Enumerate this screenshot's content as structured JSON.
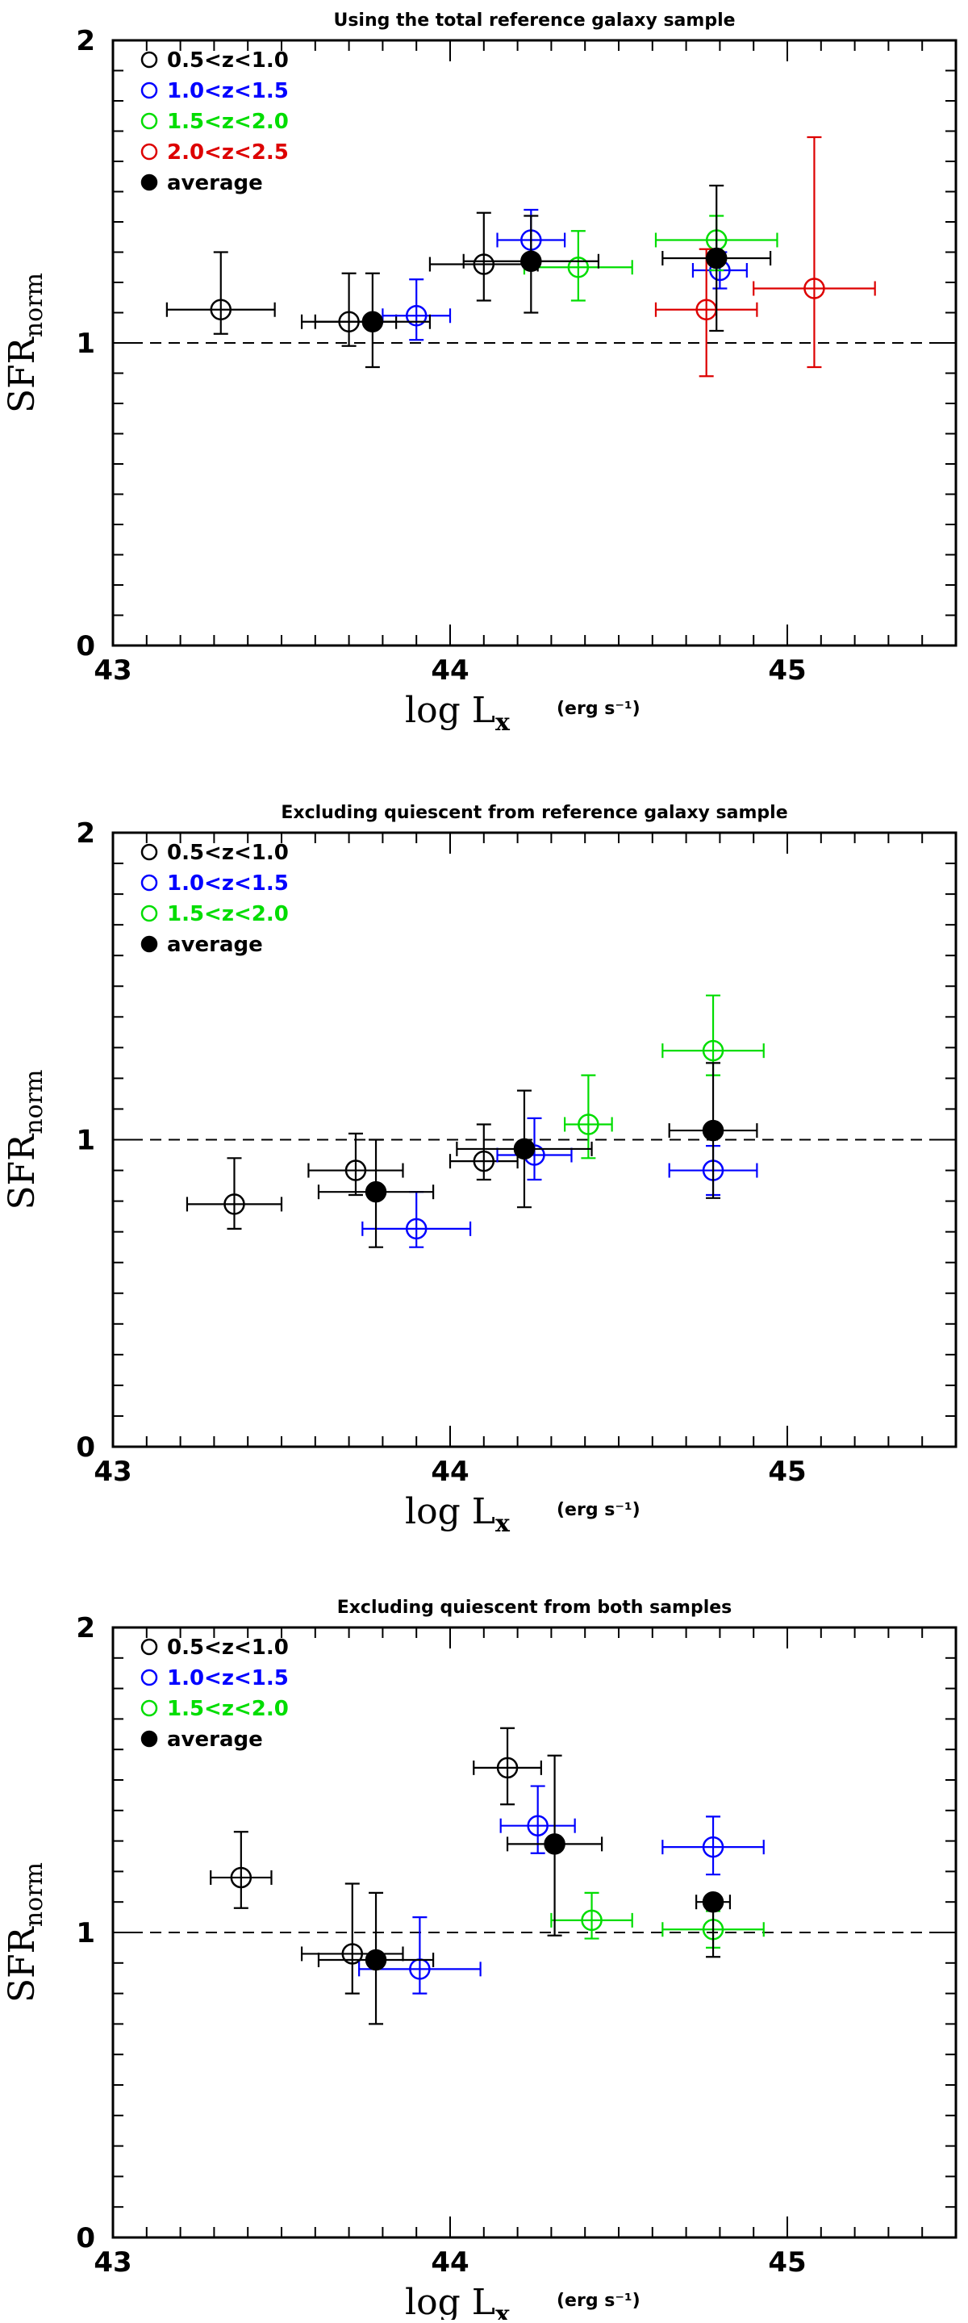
{
  "chart_data": [
    {
      "type": "scatter",
      "title": "Using the total reference galaxy sample",
      "xlabel": "log L",
      "xlabel_sub": "x",
      "xunit": "(erg s⁻¹)",
      "ylabel": "SFR",
      "ylabel_sub": "norm",
      "xlim": [
        43,
        45.5
      ],
      "ylim": [
        0,
        2
      ],
      "x_ticks": [
        "43",
        "44",
        "45"
      ],
      "y_ticks": [
        "0",
        "1",
        "2"
      ],
      "reference_line": 1,
      "series": [
        {
          "name": "0.5<z<1.0",
          "color": "#000000",
          "marker": "open-circle",
          "points": [
            {
              "x": 43.32,
              "y": 1.11,
              "xlo": 0.16,
              "xhi": 0.16,
              "ylo": 0.08,
              "yhi": 0.19
            },
            {
              "x": 43.7,
              "y": 1.07,
              "xlo": 0.14,
              "xhi": 0.14,
              "ylo": 0.08,
              "yhi": 0.16
            },
            {
              "x": 44.1,
              "y": 1.26,
              "xlo": 0.16,
              "xhi": 0.16,
              "ylo": 0.12,
              "yhi": 0.17
            }
          ]
        },
        {
          "name": "1.0<z<1.5",
          "color": "#0000ff",
          "marker": "open-circle",
          "points": [
            {
              "x": 43.9,
              "y": 1.09,
              "xlo": 0.1,
              "xhi": 0.1,
              "ylo": 0.08,
              "yhi": 0.12
            },
            {
              "x": 44.24,
              "y": 1.34,
              "xlo": 0.1,
              "xhi": 0.1,
              "ylo": 0.09,
              "yhi": 0.1
            },
            {
              "x": 44.8,
              "y": 1.24,
              "xlo": 0.08,
              "xhi": 0.08,
              "ylo": 0.06,
              "yhi": 0.06
            }
          ]
        },
        {
          "name": "1.5<z<2.0",
          "color": "#00dd00",
          "marker": "open-circle",
          "points": [
            {
              "x": 44.38,
              "y": 1.25,
              "xlo": 0.16,
              "xhi": 0.16,
              "ylo": 0.11,
              "yhi": 0.12
            },
            {
              "x": 44.79,
              "y": 1.34,
              "xlo": 0.18,
              "xhi": 0.18,
              "ylo": 0.1,
              "yhi": 0.08
            }
          ]
        },
        {
          "name": "2.0<z<2.5",
          "color": "#dd0000",
          "marker": "open-circle",
          "points": [
            {
              "x": 44.76,
              "y": 1.11,
              "xlo": 0.15,
              "xhi": 0.15,
              "ylo": 0.22,
              "yhi": 0.2
            },
            {
              "x": 45.08,
              "y": 1.18,
              "xlo": 0.18,
              "xhi": 0.18,
              "ylo": 0.26,
              "yhi": 0.5
            }
          ]
        },
        {
          "name": "average",
          "color": "#000000",
          "marker": "filled-circle",
          "points": [
            {
              "x": 43.77,
              "y": 1.07,
              "xlo": 0.17,
              "xhi": 0.17,
              "ylo": 0.15,
              "yhi": 0.16
            },
            {
              "x": 44.24,
              "y": 1.27,
              "xlo": 0.2,
              "xhi": 0.2,
              "ylo": 0.17,
              "yhi": 0.15
            },
            {
              "x": 44.79,
              "y": 1.28,
              "xlo": 0.16,
              "xhi": 0.16,
              "ylo": 0.24,
              "yhi": 0.24
            }
          ]
        }
      ]
    },
    {
      "type": "scatter",
      "title": "Excluding quiescent from reference galaxy sample",
      "xlabel": "log L",
      "xlabel_sub": "x",
      "xunit": "(erg s⁻¹)",
      "ylabel": "SFR",
      "ylabel_sub": "norm",
      "xlim": [
        43,
        45.5
      ],
      "ylim": [
        0,
        2
      ],
      "x_ticks": [
        "43",
        "44",
        "45"
      ],
      "y_ticks": [
        "0",
        "1",
        "2"
      ],
      "reference_line": 1,
      "series": [
        {
          "name": "0.5<z<1.0",
          "color": "#000000",
          "marker": "open-circle",
          "points": [
            {
              "x": 43.36,
              "y": 0.79,
              "xlo": 0.14,
              "xhi": 0.14,
              "ylo": 0.08,
              "yhi": 0.15
            },
            {
              "x": 43.72,
              "y": 0.9,
              "xlo": 0.14,
              "xhi": 0.14,
              "ylo": 0.08,
              "yhi": 0.12
            },
            {
              "x": 44.1,
              "y": 0.93,
              "xlo": 0.1,
              "xhi": 0.1,
              "ylo": 0.06,
              "yhi": 0.12
            }
          ]
        },
        {
          "name": "1.0<z<1.5",
          "color": "#0000ff",
          "marker": "open-circle",
          "points": [
            {
              "x": 43.9,
              "y": 0.71,
              "xlo": 0.16,
              "xhi": 0.16,
              "ylo": 0.06,
              "yhi": 0.12
            },
            {
              "x": 44.25,
              "y": 0.95,
              "xlo": 0.11,
              "xhi": 0.11,
              "ylo": 0.08,
              "yhi": 0.12
            },
            {
              "x": 44.78,
              "y": 0.9,
              "xlo": 0.13,
              "xhi": 0.13,
              "ylo": 0.08,
              "yhi": 0.08
            }
          ]
        },
        {
          "name": "1.5<z<2.0",
          "color": "#00dd00",
          "marker": "open-circle",
          "points": [
            {
              "x": 44.41,
              "y": 1.05,
              "xlo": 0.07,
              "xhi": 0.07,
              "ylo": 0.11,
              "yhi": 0.16
            },
            {
              "x": 44.78,
              "y": 1.29,
              "xlo": 0.15,
              "xhi": 0.15,
              "ylo": 0.08,
              "yhi": 0.18
            }
          ]
        },
        {
          "name": "average",
          "color": "#000000",
          "marker": "filled-circle",
          "points": [
            {
              "x": 43.78,
              "y": 0.83,
              "xlo": 0.17,
              "xhi": 0.17,
              "ylo": 0.18,
              "yhi": 0.17
            },
            {
              "x": 44.22,
              "y": 0.97,
              "xlo": 0.2,
              "xhi": 0.2,
              "ylo": 0.19,
              "yhi": 0.19
            },
            {
              "x": 44.78,
              "y": 1.03,
              "xlo": 0.13,
              "xhi": 0.13,
              "ylo": 0.22,
              "yhi": 0.22
            }
          ]
        }
      ]
    },
    {
      "type": "scatter",
      "title": "Excluding quiescent from both samples",
      "xlabel": "log L",
      "xlabel_sub": "x",
      "xunit": "(erg s⁻¹)",
      "ylabel": "SFR",
      "ylabel_sub": "norm",
      "xlim": [
        43,
        45.5
      ],
      "ylim": [
        0,
        2
      ],
      "x_ticks": [
        "43",
        "44",
        "45"
      ],
      "y_ticks": [
        "0",
        "1",
        "2"
      ],
      "reference_line": 1,
      "series": [
        {
          "name": "0.5<z<1.0",
          "color": "#000000",
          "marker": "open-circle",
          "points": [
            {
              "x": 43.38,
              "y": 1.18,
              "xlo": 0.09,
              "xhi": 0.09,
              "ylo": 0.1,
              "yhi": 0.15
            },
            {
              "x": 43.71,
              "y": 0.93,
              "xlo": 0.15,
              "xhi": 0.15,
              "ylo": 0.13,
              "yhi": 0.23
            },
            {
              "x": 44.17,
              "y": 1.54,
              "xlo": 0.1,
              "xhi": 0.1,
              "ylo": 0.12,
              "yhi": 0.13
            }
          ]
        },
        {
          "name": "1.0<z<1.5",
          "color": "#0000ff",
          "marker": "open-circle",
          "points": [
            {
              "x": 43.91,
              "y": 0.88,
              "xlo": 0.18,
              "xhi": 0.18,
              "ylo": 0.08,
              "yhi": 0.17
            },
            {
              "x": 44.26,
              "y": 1.35,
              "xlo": 0.11,
              "xhi": 0.11,
              "ylo": 0.09,
              "yhi": 0.13
            },
            {
              "x": 44.78,
              "y": 1.28,
              "xlo": 0.15,
              "xhi": 0.15,
              "ylo": 0.09,
              "yhi": 0.1
            }
          ]
        },
        {
          "name": "1.5<z<2.0",
          "color": "#00dd00",
          "marker": "open-circle",
          "points": [
            {
              "x": 44.42,
              "y": 1.04,
              "xlo": 0.12,
              "xhi": 0.12,
              "ylo": 0.06,
              "yhi": 0.09
            },
            {
              "x": 44.78,
              "y": 1.01,
              "xlo": 0.15,
              "xhi": 0.15,
              "ylo": 0.06,
              "yhi": 0.06
            }
          ]
        },
        {
          "name": "average",
          "color": "#000000",
          "marker": "filled-circle",
          "points": [
            {
              "x": 43.78,
              "y": 0.91,
              "xlo": 0.17,
              "xhi": 0.17,
              "ylo": 0.21,
              "yhi": 0.22
            },
            {
              "x": 44.31,
              "y": 1.29,
              "xlo": 0.14,
              "xhi": 0.14,
              "ylo": 0.3,
              "yhi": 0.29
            },
            {
              "x": 44.78,
              "y": 1.1,
              "xlo": 0.05,
              "xhi": 0.05,
              "ylo": 0.18,
              "yhi": 0.02
            }
          ]
        }
      ]
    }
  ]
}
